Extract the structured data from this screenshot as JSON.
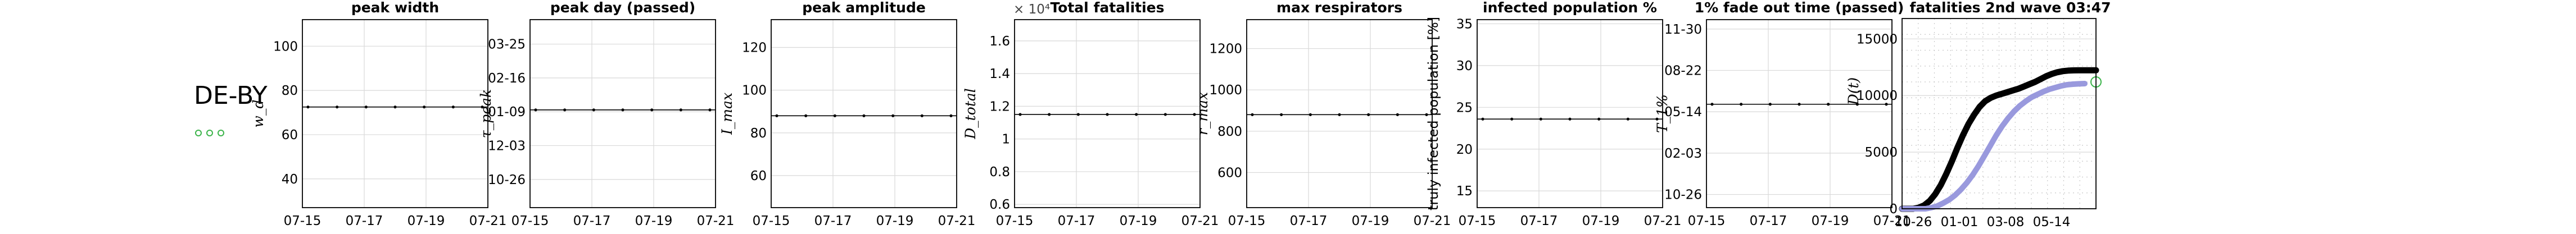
{
  "region": {
    "label": "DE-BY",
    "marker_color": "#3cb44b"
  },
  "panels": [
    {
      "id": "peak-width",
      "title": "peak width",
      "ylabel": "w_d",
      "ylabel_sub": true,
      "xticks": [
        "07-15",
        "07-17",
        "07-19",
        "07-21"
      ],
      "yticks": [
        "40",
        "60",
        "80",
        "100"
      ],
      "ylim": [
        27,
        112
      ],
      "yticks_values": [
        40,
        60,
        80,
        100
      ],
      "series_value": 72.5
    },
    {
      "id": "peak-day",
      "title": "peak day (passed)",
      "ylabel": "τ_peak",
      "ylabel_sub": true,
      "xticks": [
        "07-15",
        "07-17",
        "07-19",
        "07-21"
      ],
      "yticks": [
        "10-26",
        "12-03",
        "01-09",
        "02-16",
        "03-25"
      ],
      "ylim": [
        0,
        10
      ],
      "yticks_values": [
        1.5,
        3.3,
        5.1,
        6.9,
        8.7
      ],
      "series_value": 5.2
    },
    {
      "id": "peak-amplitude",
      "title": "peak amplitude",
      "ylabel": "I_max",
      "ylabel_sub": true,
      "xticks": [
        "07-15",
        "07-17",
        "07-19",
        "07-21"
      ],
      "yticks": [
        "60",
        "80",
        "100",
        "120"
      ],
      "ylim": [
        45,
        133
      ],
      "yticks_values": [
        60,
        80,
        100,
        120
      ],
      "series_value": 88
    },
    {
      "id": "total-fatalities",
      "title": "Total fatalities",
      "ylabel": "D_total",
      "ylabel_sub": true,
      "exponent": "× 10⁴",
      "xticks": [
        "07-15",
        "07-17",
        "07-19",
        "07-21"
      ],
      "yticks": [
        "0.6",
        "0.8",
        "1",
        "1.2",
        "1.4",
        "1.6"
      ],
      "ylim": [
        0.58,
        1.73
      ],
      "yticks_values": [
        0.6,
        0.8,
        1.0,
        1.2,
        1.4,
        1.6
      ],
      "series_value": 1.15
    },
    {
      "id": "max-respirators",
      "title": "max respirators",
      "ylabel": "r_max",
      "ylabel_sub": true,
      "xticks": [
        "07-15",
        "07-17",
        "07-19",
        "07-21"
      ],
      "yticks": [
        "600",
        "800",
        "1000",
        "1200"
      ],
      "ylim": [
        430,
        1340
      ],
      "yticks_values": [
        600,
        800,
        1000,
        1200
      ],
      "series_value": 880
    },
    {
      "id": "infected-population",
      "title": "infected population %",
      "ylabel": "truly infected population [%]",
      "ylabel_sub": false,
      "xticks": [
        "07-15",
        "07-17",
        "07-19",
        "07-21"
      ],
      "yticks": [
        "15",
        "20",
        "25",
        "30",
        "35"
      ],
      "ylim": [
        13,
        35.5
      ],
      "yticks_values": [
        15,
        20,
        25,
        30,
        35
      ],
      "series_value": 23.6
    },
    {
      "id": "fade-out-time",
      "title": "1% fade out time (passed)",
      "ylabel": "T_1%",
      "ylabel_sub": true,
      "xticks": [
        "07-15",
        "07-17",
        "07-19",
        "07-21"
      ],
      "yticks": [
        "10-26",
        "02-03",
        "05-14",
        "08-22",
        "11-30"
      ],
      "ylim": [
        0,
        10
      ],
      "yticks_values": [
        0.7,
        2.9,
        5.1,
        7.3,
        9.5
      ],
      "series_value": 5.5
    }
  ],
  "chart_data": {
    "type": "line",
    "title": "fatalities 2nd wave 03:47",
    "ylabel": "D(t)",
    "xticks": [
      "10-26",
      "01-01",
      "03-08",
      "05-14"
    ],
    "yticks": [
      "0",
      "5000",
      "10000",
      "15000"
    ],
    "ylim": [
      0,
      16800
    ],
    "series": [
      {
        "color": "#000000",
        "values": [
          0,
          0,
          0,
          100,
          300,
          700,
          1300,
          2100,
          3100,
          4200,
          5400,
          6500,
          7500,
          8300,
          9000,
          9500,
          9800,
          10000,
          10150,
          10300,
          10450,
          10600,
          10800,
          11000,
          11200,
          11450,
          11700,
          11900,
          12050,
          12150,
          12200,
          12220,
          12230,
          12230,
          12230,
          12230
        ]
      },
      {
        "color": "#9999dd",
        "values": [
          0,
          0,
          0,
          0,
          0,
          100,
          250,
          500,
          800,
          1200,
          1700,
          2300,
          3000,
          3800,
          4700,
          5600,
          6500,
          7300,
          8000,
          8600,
          9100,
          9500,
          9850,
          10100,
          10350,
          10550,
          10700,
          10850,
          10950,
          11000,
          11030,
          11050
        ]
      }
    ],
    "marker_value": 11200,
    "marker_color": "#3cb44b"
  }
}
